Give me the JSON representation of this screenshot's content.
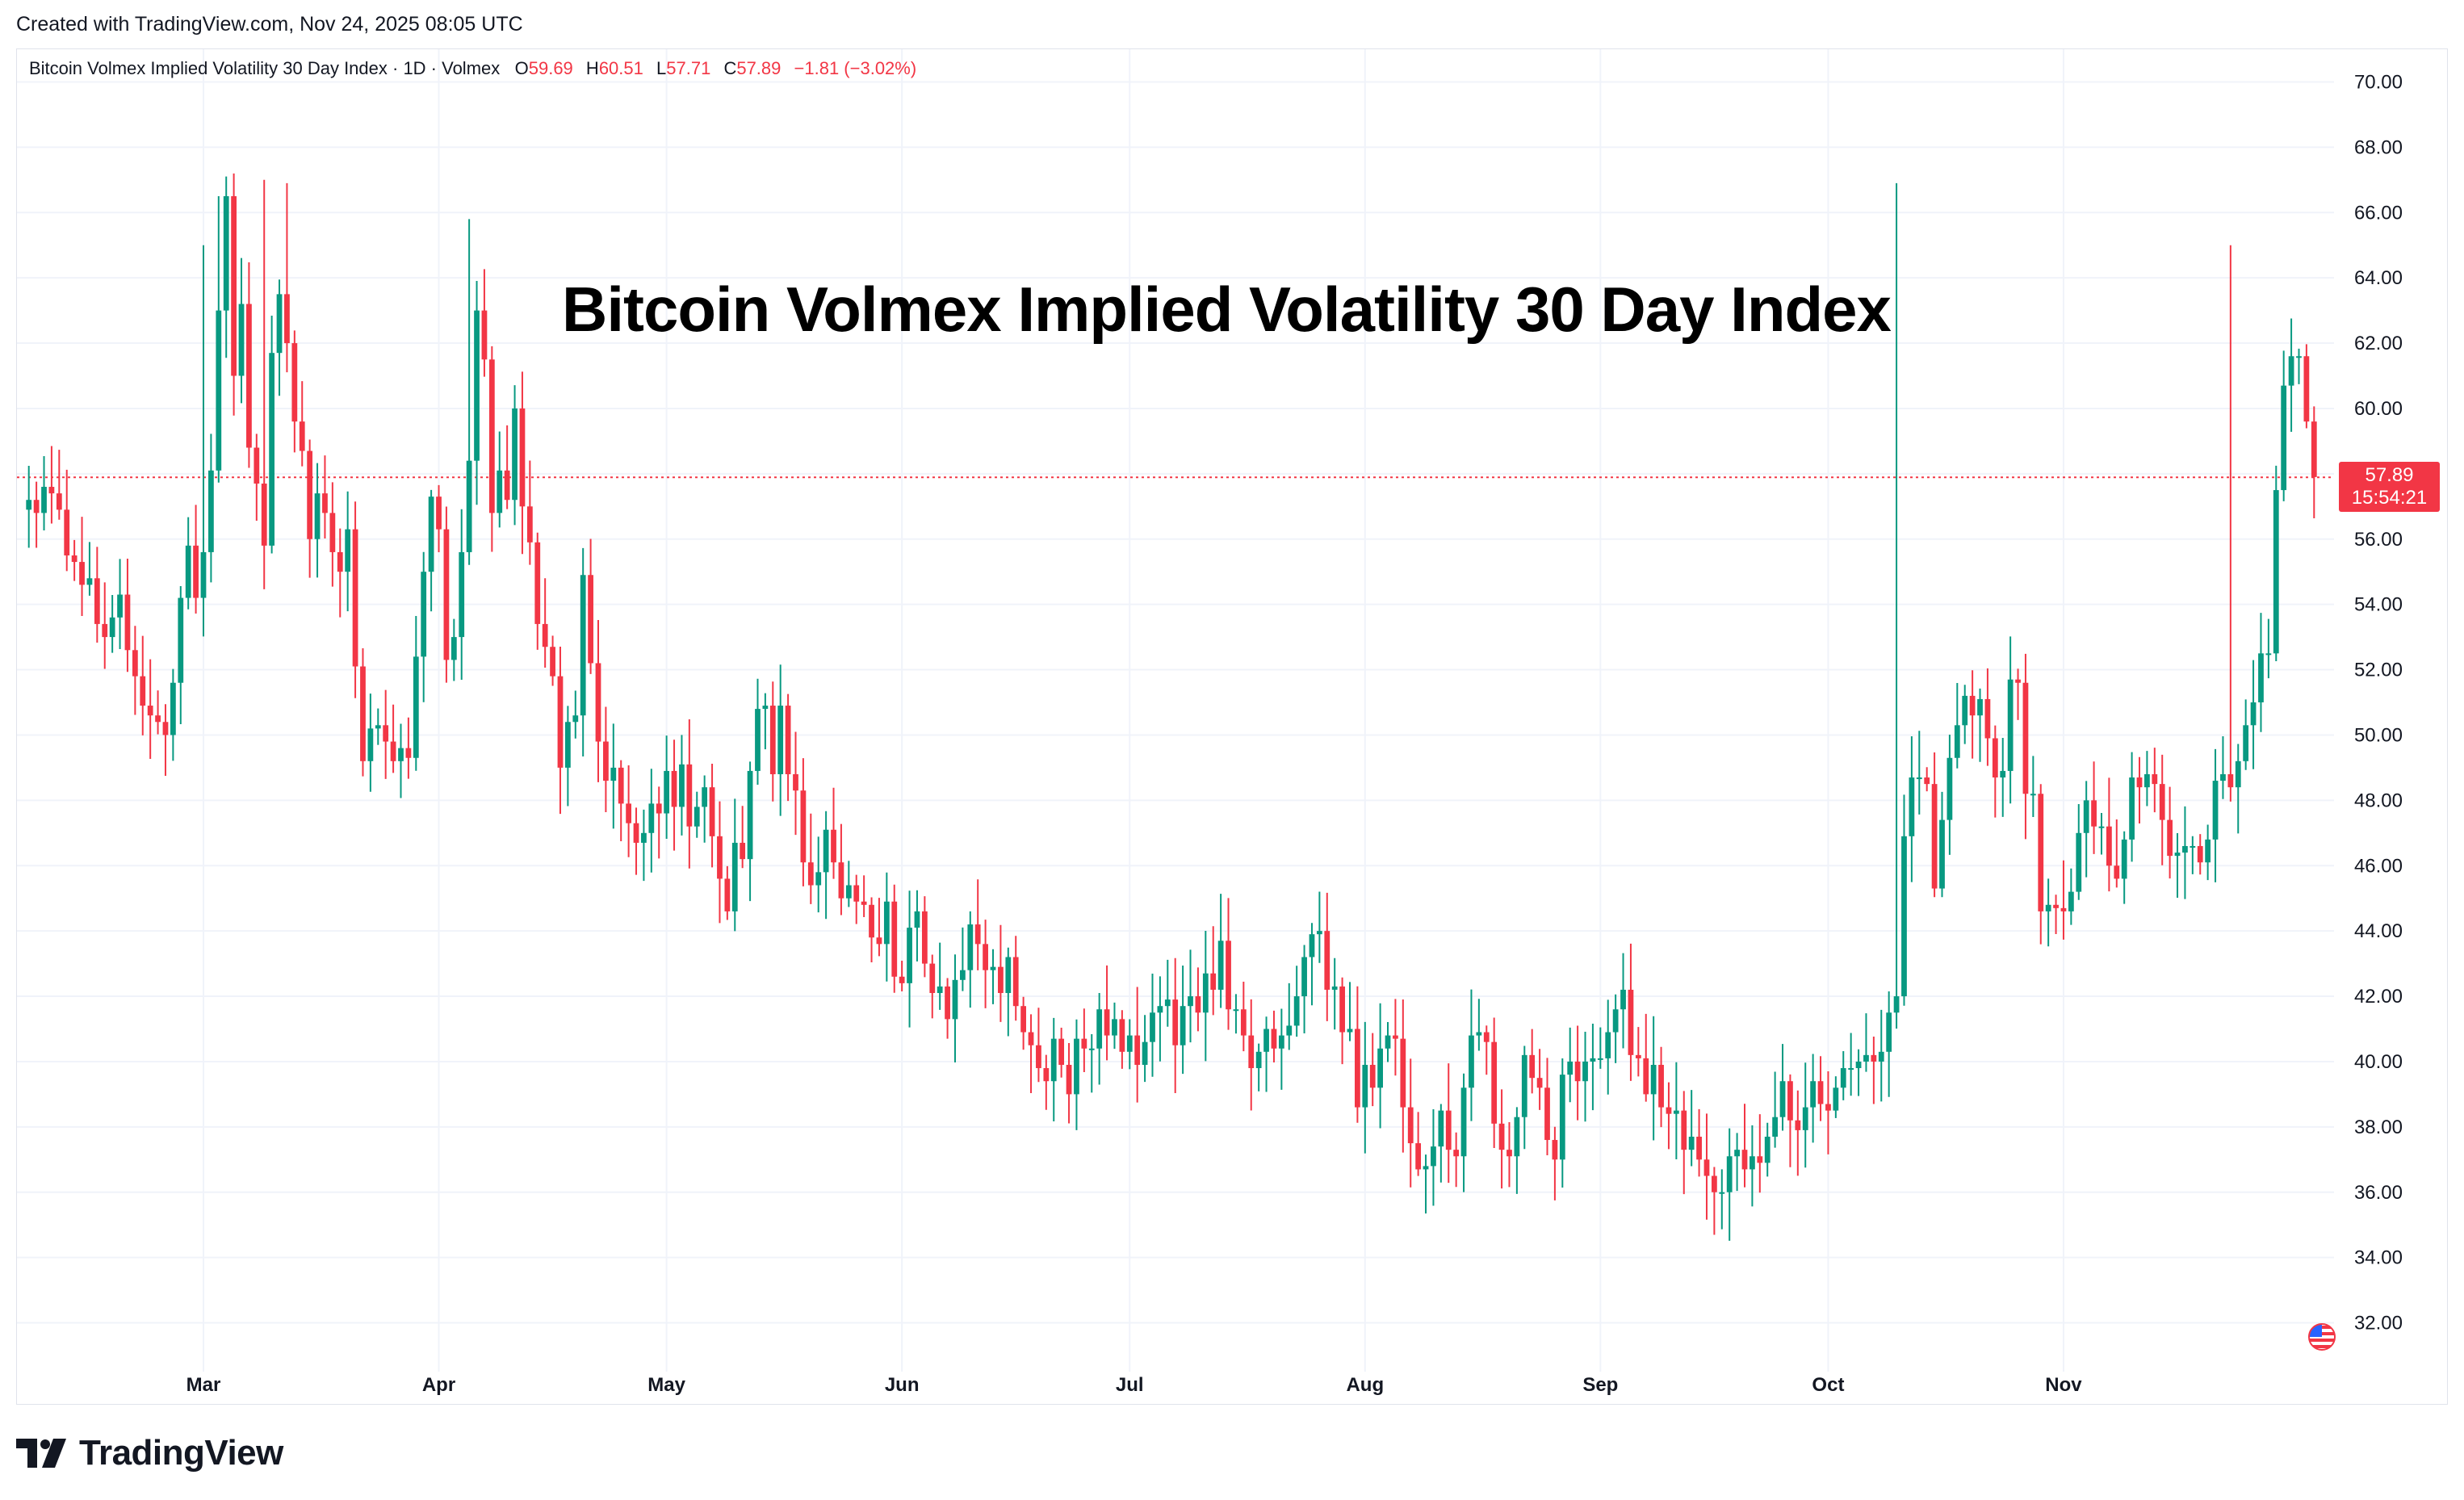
{
  "header": {
    "created_text": "Created with TradingView.com, Nov 24, 2025 08:05 UTC"
  },
  "legend": {
    "symbol": "Bitcoin Volmex Implied Volatility 30 Day Index · 1D · Volmex",
    "o_label": "O",
    "o_value": "59.69",
    "h_label": "H",
    "h_value": "60.51",
    "l_label": "L",
    "l_value": "57.71",
    "c_label": "C",
    "c_value": "57.89",
    "change": "−1.81 (−3.02%)"
  },
  "price_badge": {
    "price": "57.89",
    "countdown": "15:54:21"
  },
  "branding": {
    "logo_text": "TradingView"
  },
  "colors": {
    "up": "#089981",
    "down": "#f23645",
    "grid": "#f0f3fa",
    "price_line": "#f23645"
  },
  "chart_data": {
    "type": "candlestick",
    "title": "Bitcoin Volmex Implied Volatility 30 Day Index",
    "ylim": [
      31,
      71
    ],
    "y_ticks": [
      "70.00",
      "68.00",
      "66.00",
      "64.00",
      "62.00",
      "60.00",
      "58.00",
      "56.00",
      "54.00",
      "52.00",
      "50.00",
      "48.00",
      "46.00",
      "44.00",
      "42.00",
      "40.00",
      "38.00",
      "36.00",
      "34.00",
      "32.00"
    ],
    "x_ticks": [
      {
        "label": "Mar",
        "day": 23
      },
      {
        "label": "Apr",
        "day": 54
      },
      {
        "label": "May",
        "day": 84
      },
      {
        "label": "Jun",
        "day": 115
      },
      {
        "label": "Jul",
        "day": 145
      },
      {
        "label": "Aug",
        "day": 176
      },
      {
        "label": "Sep",
        "day": 207
      },
      {
        "label": "Oct",
        "day": 237
      },
      {
        "label": "Nov",
        "day": 268
      }
    ],
    "last_close": 57.89,
    "close_series": [
      57.2,
      56.8,
      57.6,
      57.4,
      56.9,
      55.5,
      55.3,
      54.6,
      54.8,
      53.4,
      53.0,
      53.6,
      54.3,
      52.6,
      51.8,
      50.9,
      50.6,
      50.4,
      50.0,
      51.6,
      54.2,
      55.8,
      54.2,
      55.6,
      58.1,
      63.0,
      66.5,
      61.0,
      63.2,
      58.8,
      57.7,
      55.8,
      61.7,
      63.5,
      62.0,
      59.6,
      58.7,
      56.0,
      57.4,
      56.8,
      55.6,
      55.0,
      56.3,
      52.1,
      49.2,
      50.2,
      50.3,
      49.8,
      49.2,
      49.6,
      49.3,
      52.4,
      55.0,
      57.3,
      56.3,
      52.3,
      53.0,
      55.6,
      58.4,
      63.0,
      61.5,
      56.8,
      58.1,
      57.2,
      60.0,
      57.0,
      55.9,
      53.4,
      52.7,
      51.8,
      49.0,
      50.4,
      50.6,
      54.9,
      52.2,
      49.8,
      48.6,
      49.0,
      47.9,
      47.3,
      46.7,
      47.0,
      47.9,
      47.6,
      48.9,
      47.8,
      49.1,
      47.2,
      47.8,
      48.4,
      46.9,
      45.6,
      44.6,
      46.7,
      46.2,
      48.9,
      50.8,
      50.9,
      48.8,
      50.9,
      48.8,
      48.3,
      46.1,
      45.4,
      45.8,
      47.1,
      46.1,
      45.0,
      45.4,
      44.9,
      44.8,
      43.8,
      43.6,
      44.9,
      42.6,
      42.4,
      44.1,
      44.6,
      43.0,
      42.1,
      42.3,
      41.3,
      42.5,
      42.8,
      44.2,
      43.6,
      42.8,
      42.9,
      42.1,
      43.2,
      41.7,
      40.9,
      40.5,
      39.8,
      39.4,
      40.7,
      39.9,
      39.0,
      40.7,
      40.4,
      40.4,
      41.6,
      40.8,
      41.3,
      40.3,
      40.8,
      39.9,
      40.6,
      41.5,
      41.7,
      41.9,
      40.5,
      41.7,
      42.0,
      41.5,
      42.7,
      42.2,
      43.7,
      41.6,
      41.6,
      40.8,
      39.8,
      40.3,
      41.0,
      40.4,
      40.8,
      41.1,
      42.0,
      43.2,
      43.9,
      44.0,
      42.2,
      42.3,
      40.9,
      41.0,
      38.6,
      39.9,
      39.2,
      40.4,
      40.8,
      40.7,
      38.6,
      37.5,
      36.7,
      36.8,
      37.4,
      38.5,
      37.3,
      37.1,
      39.2,
      40.8,
      40.9,
      40.6,
      38.1,
      37.3,
      37.1,
      38.3,
      40.2,
      39.5,
      39.2,
      37.6,
      37.0,
      39.6,
      40.0,
      39.4,
      40.0,
      40.1,
      40.1,
      40.9,
      41.6,
      42.2,
      40.2,
      40.1,
      39.0,
      39.9,
      38.6,
      38.4,
      38.5,
      37.3,
      37.7,
      37.0,
      36.5,
      36.0,
      36.0,
      37.1,
      37.3,
      36.7,
      37.1,
      36.9,
      37.7,
      38.3,
      39.4,
      38.2,
      37.9,
      38.6,
      39.4,
      38.7,
      38.5,
      39.2,
      39.8,
      39.8,
      40.0,
      40.2,
      40.0,
      40.3,
      41.5,
      42.0,
      46.9,
      48.7,
      48.7,
      48.5,
      45.3,
      47.4,
      49.3,
      50.3,
      51.2,
      50.6,
      51.1,
      49.9,
      48.7,
      48.9,
      51.7,
      51.6,
      48.2,
      48.2,
      44.6,
      44.8,
      44.7,
      44.6,
      45.2,
      47.0,
      48.0,
      47.2,
      47.2,
      46.0,
      45.6,
      46.8,
      48.7,
      48.4,
      48.8,
      48.5,
      47.4,
      46.3,
      46.4,
      46.6,
      46.6,
      46.1,
      46.8,
      48.6,
      48.8,
      48.4,
      49.2,
      50.3,
      51.0,
      52.5,
      52.5,
      57.5,
      60.7,
      61.6,
      61.6,
      59.6,
      57.9
    ]
  }
}
